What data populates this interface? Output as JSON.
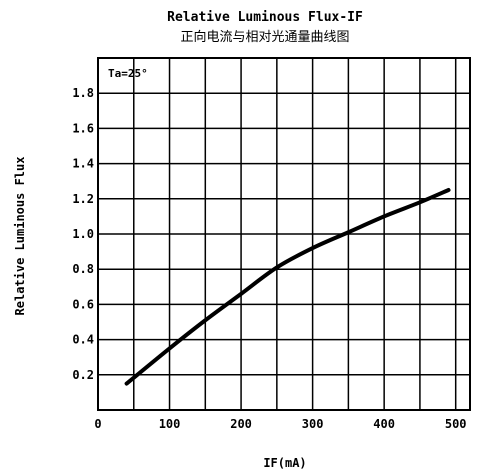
{
  "chart_data": {
    "type": "line",
    "title": "Relative Luminous Flux-IF",
    "subtitle": "正向电流与相对光通量曲线图",
    "xlabel": "IF(mA)",
    "ylabel": "Relative Luminous Flux",
    "annotation": "Ta=25°",
    "x_ticks": [
      0,
      100,
      200,
      300,
      400,
      500
    ],
    "x_tick_labels": [
      "0",
      "100",
      "200",
      "300",
      "400",
      "500"
    ],
    "y_ticks": [
      0.2,
      0.4,
      0.6,
      0.8,
      1.0,
      1.2,
      1.4,
      1.6,
      1.8
    ],
    "y_tick_labels": [
      "0.2",
      "0.4",
      "0.6",
      "0.8",
      "1.0",
      "1.2",
      "1.4",
      "1.6",
      "1.8"
    ],
    "xlim": [
      0,
      520
    ],
    "ylim": [
      0,
      2.0
    ],
    "grid": true,
    "series": [
      {
        "x": [
          40,
          100,
          150,
          200,
          250,
          300,
          350,
          400,
          450,
          490
        ],
        "y": [
          0.15,
          0.35,
          0.51,
          0.66,
          0.81,
          0.92,
          1.01,
          1.1,
          1.18,
          1.25
        ]
      }
    ]
  }
}
